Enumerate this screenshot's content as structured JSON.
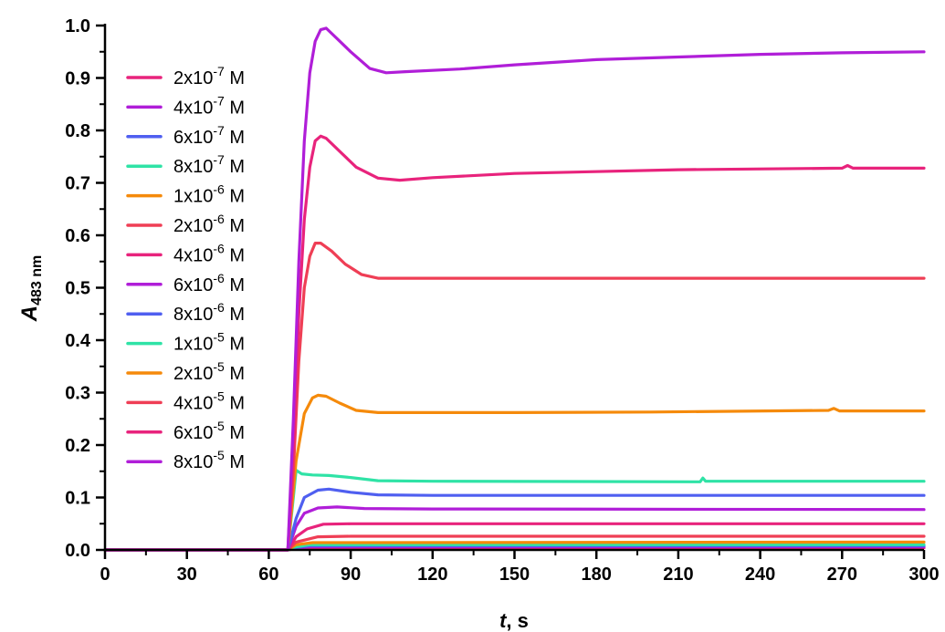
{
  "chart_data": {
    "type": "line",
    "title": "",
    "xlabel": {
      "italic": "t",
      "rest": ", s"
    },
    "ylabel": {
      "italic": "A",
      "sub": "483 nm"
    },
    "xlim": [
      0,
      300
    ],
    "ylim": [
      0,
      1.0
    ],
    "x_ticks": [
      "0",
      "30",
      "60",
      "90",
      "120",
      "150",
      "180",
      "210",
      "240",
      "270",
      "300"
    ],
    "y_ticks": [
      "0.0",
      "0.1",
      "0.2",
      "0.3",
      "0.4",
      "0.5",
      "0.6",
      "0.7",
      "0.8",
      "0.9",
      "1.0"
    ],
    "grid": false,
    "legend_position": "top-left",
    "series": [
      {
        "name": {
          "base": "2x10",
          "exp": "-7",
          "unit": " M"
        },
        "color": "#e8237c",
        "points": [
          [
            0,
            0
          ],
          [
            67,
            0
          ],
          [
            69,
            0.002
          ],
          [
            75,
            0.004
          ],
          [
            90,
            0.004
          ],
          [
            300,
            0.004
          ]
        ]
      },
      {
        "name": {
          "base": "4x10",
          "exp": "-7",
          "unit": " M"
        },
        "color": "#b01ed8",
        "points": [
          [
            0,
            0
          ],
          [
            67,
            0
          ],
          [
            69,
            0.003
          ],
          [
            75,
            0.006
          ],
          [
            90,
            0.006
          ],
          [
            300,
            0.006
          ]
        ]
      },
      {
        "name": {
          "base": "6x10",
          "exp": "-7",
          "unit": " M"
        },
        "color": "#4f5ff0",
        "points": [
          [
            0,
            0
          ],
          [
            67,
            0
          ],
          [
            69,
            0.004
          ],
          [
            75,
            0.008
          ],
          [
            90,
            0.008
          ],
          [
            300,
            0.008
          ]
        ]
      },
      {
        "name": {
          "base": "8x10",
          "exp": "-7",
          "unit": " M"
        },
        "color": "#2fe3a6",
        "points": [
          [
            0,
            0
          ],
          [
            67,
            0
          ],
          [
            69,
            0.005
          ],
          [
            75,
            0.01
          ],
          [
            90,
            0.01
          ],
          [
            300,
            0.01
          ]
        ]
      },
      {
        "name": {
          "base": "1x10",
          "exp": "-6",
          "unit": " M"
        },
        "color": "#f58a0b",
        "points": [
          [
            0,
            0
          ],
          [
            67,
            0
          ],
          [
            70,
            0.01
          ],
          [
            76,
            0.014
          ],
          [
            90,
            0.014
          ],
          [
            300,
            0.015
          ]
        ]
      },
      {
        "name": {
          "base": "2x10",
          "exp": "-6",
          "unit": " M"
        },
        "color": "#ef3e55",
        "points": [
          [
            0,
            0
          ],
          [
            67,
            0
          ],
          [
            70,
            0.015
          ],
          [
            78,
            0.025
          ],
          [
            90,
            0.026
          ],
          [
            300,
            0.026
          ]
        ]
      },
      {
        "name": {
          "base": "4x10",
          "exp": "-6",
          "unit": " M"
        },
        "color": "#e8237c",
        "points": [
          [
            0,
            0
          ],
          [
            67,
            0
          ],
          [
            70,
            0.025
          ],
          [
            74,
            0.04
          ],
          [
            80,
            0.049
          ],
          [
            90,
            0.05
          ],
          [
            120,
            0.05
          ],
          [
            300,
            0.05
          ]
        ]
      },
      {
        "name": {
          "base": "6x10",
          "exp": "-6",
          "unit": " M"
        },
        "color": "#b01ed8",
        "points": [
          [
            0,
            0
          ],
          [
            67,
            0
          ],
          [
            70,
            0.045
          ],
          [
            73,
            0.07
          ],
          [
            78,
            0.08
          ],
          [
            85,
            0.082
          ],
          [
            95,
            0.079
          ],
          [
            120,
            0.078
          ],
          [
            300,
            0.077
          ]
        ]
      },
      {
        "name": {
          "base": "8x10",
          "exp": "-6",
          "unit": " M"
        },
        "color": "#4f5ff0",
        "points": [
          [
            0,
            0
          ],
          [
            67,
            0
          ],
          [
            70,
            0.06
          ],
          [
            73,
            0.1
          ],
          [
            78,
            0.114
          ],
          [
            82,
            0.116
          ],
          [
            90,
            0.11
          ],
          [
            100,
            0.105
          ],
          [
            120,
            0.104
          ],
          [
            300,
            0.104
          ]
        ]
      },
      {
        "name": {
          "base": "1x10",
          "exp": "-5",
          "unit": " M"
        },
        "color": "#2fe3a6",
        "points": [
          [
            0,
            0
          ],
          [
            67,
            0
          ],
          [
            69,
            0.1
          ],
          [
            70,
            0.152
          ],
          [
            72,
            0.145
          ],
          [
            76,
            0.143
          ],
          [
            82,
            0.142
          ],
          [
            90,
            0.138
          ],
          [
            100,
            0.132
          ],
          [
            120,
            0.131
          ],
          [
            218,
            0.13
          ],
          [
            219,
            0.137
          ],
          [
            220,
            0.131
          ],
          [
            300,
            0.131
          ]
        ]
      },
      {
        "name": {
          "base": "2x10",
          "exp": "-5",
          "unit": " M"
        },
        "color": "#f58a0b",
        "points": [
          [
            0,
            0
          ],
          [
            67,
            0
          ],
          [
            70,
            0.17
          ],
          [
            73,
            0.26
          ],
          [
            76,
            0.29
          ],
          [
            78,
            0.295
          ],
          [
            81,
            0.293
          ],
          [
            86,
            0.28
          ],
          [
            92,
            0.266
          ],
          [
            100,
            0.262
          ],
          [
            150,
            0.262
          ],
          [
            200,
            0.263
          ],
          [
            265,
            0.266
          ],
          [
            267,
            0.27
          ],
          [
            269,
            0.265
          ],
          [
            300,
            0.265
          ]
        ]
      },
      {
        "name": {
          "base": "4x10",
          "exp": "-5",
          "unit": " M"
        },
        "color": "#ef3e55",
        "points": [
          [
            0,
            0
          ],
          [
            67,
            0
          ],
          [
            69,
            0.15
          ],
          [
            71,
            0.36
          ],
          [
            73,
            0.5
          ],
          [
            75,
            0.56
          ],
          [
            77,
            0.585
          ],
          [
            79,
            0.585
          ],
          [
            83,
            0.57
          ],
          [
            88,
            0.545
          ],
          [
            94,
            0.525
          ],
          [
            100,
            0.518
          ],
          [
            120,
            0.518
          ],
          [
            300,
            0.518
          ]
        ]
      },
      {
        "name": {
          "base": "6x10",
          "exp": "-5",
          "unit": " M"
        },
        "color": "#e8237c",
        "points": [
          [
            0,
            0
          ],
          [
            67,
            0
          ],
          [
            69,
            0.2
          ],
          [
            71,
            0.45
          ],
          [
            73,
            0.63
          ],
          [
            75,
            0.73
          ],
          [
            77,
            0.78
          ],
          [
            79,
            0.789
          ],
          [
            81,
            0.785
          ],
          [
            86,
            0.76
          ],
          [
            92,
            0.73
          ],
          [
            100,
            0.709
          ],
          [
            108,
            0.705
          ],
          [
            120,
            0.71
          ],
          [
            150,
            0.718
          ],
          [
            210,
            0.725
          ],
          [
            270,
            0.728
          ],
          [
            272,
            0.733
          ],
          [
            274,
            0.728
          ],
          [
            300,
            0.728
          ]
        ]
      },
      {
        "name": {
          "base": "8x10",
          "exp": "-5",
          "unit": " M"
        },
        "color": "#b01ed8",
        "points": [
          [
            0,
            0
          ],
          [
            67,
            0
          ],
          [
            69,
            0.25
          ],
          [
            71,
            0.55
          ],
          [
            73,
            0.78
          ],
          [
            75,
            0.91
          ],
          [
            77,
            0.97
          ],
          [
            79,
            0.992
          ],
          [
            81,
            0.995
          ],
          [
            84,
            0.98
          ],
          [
            90,
            0.95
          ],
          [
            97,
            0.918
          ],
          [
            103,
            0.91
          ],
          [
            110,
            0.912
          ],
          [
            130,
            0.917
          ],
          [
            150,
            0.925
          ],
          [
            180,
            0.935
          ],
          [
            210,
            0.94
          ],
          [
            240,
            0.945
          ],
          [
            270,
            0.948
          ],
          [
            300,
            0.95
          ]
        ]
      }
    ]
  }
}
